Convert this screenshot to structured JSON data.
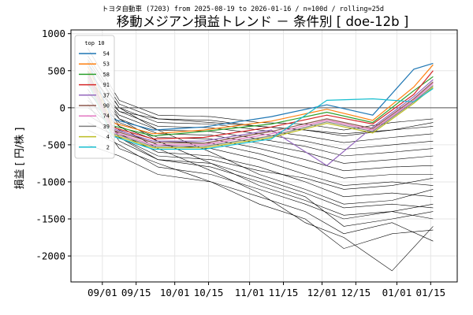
{
  "chart_data": {
    "type": "line",
    "suptitle": "トヨタ自動車 (7203) from 2025-08-19 to 2026-01-16 / n=100d / rolling=25d",
    "title": "移動メジアン損益トレンド － 条件別 [ doe-12b ]",
    "ylabel": "損益 [ 円/株 ]",
    "xlabel": "",
    "x_tick_labels": [
      "09/01",
      "09/15",
      "10/01",
      "10/15",
      "11/01",
      "11/15",
      "12/01",
      "12/15",
      "01/01",
      "01/15"
    ],
    "x_tick_dates": [
      "2025-09-01",
      "2025-09-15",
      "2025-10-01",
      "2025-10-15",
      "2025-11-01",
      "2025-11-15",
      "2025-12-01",
      "2025-12-15",
      "2026-01-01",
      "2026-01-15"
    ],
    "x_range": [
      "2025-08-19",
      "2026-01-26"
    ],
    "y_ticks": [
      1000,
      500,
      0,
      -500,
      -1000,
      -1500,
      -2000
    ],
    "ylim": [
      -2350,
      1050
    ],
    "grid": true,
    "zero_line": true,
    "legend": {
      "title": "top 10",
      "position": "upper-left"
    },
    "series": [
      {
        "name": "54",
        "color": "#1f77b4",
        "x": [
          "2025-08-26",
          "2025-09-05",
          "2025-09-22",
          "2025-10-13",
          "2025-11-10",
          "2025-12-03",
          "2025-12-22",
          "2026-01-08",
          "2026-01-16"
        ],
        "values": [
          620,
          -150,
          -300,
          -260,
          -120,
          40,
          -100,
          520,
          600
        ]
      },
      {
        "name": "53",
        "color": "#ff7f0e",
        "x": [
          "2025-08-26",
          "2025-09-05",
          "2025-09-22",
          "2025-10-13",
          "2025-11-10",
          "2025-12-03",
          "2025-12-22",
          "2026-01-08",
          "2026-01-16"
        ],
        "values": [
          560,
          -200,
          -350,
          -300,
          -180,
          -20,
          -170,
          280,
          580
        ]
      },
      {
        "name": "58",
        "color": "#2ca02c",
        "x": [
          "2025-08-26",
          "2025-09-05",
          "2025-09-22",
          "2025-10-13",
          "2025-11-10",
          "2025-12-03",
          "2025-12-22",
          "2026-01-08",
          "2026-01-16"
        ],
        "values": [
          500,
          -240,
          -380,
          -320,
          -220,
          -60,
          -200,
          230,
          420
        ]
      },
      {
        "name": "91",
        "color": "#d62728",
        "x": [
          "2025-08-26",
          "2025-09-05",
          "2025-09-22",
          "2025-10-13",
          "2025-11-10",
          "2025-12-03",
          "2025-12-22",
          "2026-01-08",
          "2026-01-16"
        ],
        "values": [
          480,
          -260,
          -420,
          -400,
          -260,
          -100,
          -220,
          180,
          500
        ]
      },
      {
        "name": "37",
        "color": "#9467bd",
        "x": [
          "2025-08-26",
          "2025-09-05",
          "2025-09-22",
          "2025-10-13",
          "2025-11-10",
          "2025-12-03",
          "2025-12-22",
          "2026-01-08",
          "2026-01-16"
        ],
        "values": [
          450,
          -280,
          -450,
          -450,
          -300,
          -780,
          -260,
          150,
          380
        ]
      },
      {
        "name": "90",
        "color": "#8c564b",
        "x": [
          "2025-08-26",
          "2025-09-05",
          "2025-09-22",
          "2025-10-13",
          "2025-11-10",
          "2025-12-03",
          "2025-12-22",
          "2026-01-08",
          "2026-01-16"
        ],
        "values": [
          420,
          -300,
          -470,
          -480,
          -320,
          -150,
          -280,
          120,
          350
        ]
      },
      {
        "name": "74",
        "color": "#e377c2",
        "x": [
          "2025-08-26",
          "2025-09-05",
          "2025-09-22",
          "2025-10-13",
          "2025-11-10",
          "2025-12-03",
          "2025-12-22",
          "2026-01-08",
          "2026-01-16"
        ],
        "values": [
          400,
          -320,
          -500,
          -500,
          -350,
          -170,
          -300,
          100,
          330
        ]
      },
      {
        "name": "39",
        "color": "#7f7f7f",
        "x": [
          "2025-08-26",
          "2025-09-05",
          "2025-09-22",
          "2025-10-13",
          "2025-11-10",
          "2025-12-03",
          "2025-12-22",
          "2026-01-08",
          "2026-01-16"
        ],
        "values": [
          380,
          -340,
          -520,
          -520,
          -380,
          -190,
          -320,
          80,
          300
        ]
      },
      {
        "name": "4",
        "color": "#bcbd22",
        "x": [
          "2025-08-26",
          "2025-09-05",
          "2025-09-22",
          "2025-10-13",
          "2025-11-10",
          "2025-12-03",
          "2025-12-22",
          "2026-01-08",
          "2026-01-16"
        ],
        "values": [
          360,
          -360,
          -540,
          -540,
          -400,
          -210,
          -340,
          60,
          280
        ]
      },
      {
        "name": "2",
        "color": "#17becf",
        "x": [
          "2025-08-26",
          "2025-09-05",
          "2025-09-22",
          "2025-10-13",
          "2025-11-10",
          "2025-12-03",
          "2025-12-22",
          "2026-01-08",
          "2026-01-16"
        ],
        "values": [
          340,
          -380,
          -560,
          -560,
          -420,
          100,
          120,
          80,
          260
        ]
      }
    ],
    "background_series_note": "",
    "background_series": [
      {
        "x": [
          "2025-08-26",
          "2025-09-08",
          "2025-09-24",
          "2025-10-16",
          "2025-11-05",
          "2025-11-24",
          "2025-12-10",
          "2025-12-30",
          "2026-01-16"
        ],
        "values": [
          -500,
          -650,
          -900,
          -1000,
          -1200,
          -1400,
          -1700,
          -1550,
          -1800
        ]
      },
      {
        "x": [
          "2025-08-26",
          "2025-09-08",
          "2025-09-24",
          "2025-10-16",
          "2025-11-05",
          "2025-11-24",
          "2025-12-10",
          "2025-12-30",
          "2026-01-16"
        ],
        "values": [
          -300,
          -500,
          -800,
          -900,
          -1100,
          -1300,
          -1500,
          -1400,
          -1500
        ]
      },
      {
        "x": [
          "2025-08-26",
          "2025-09-08",
          "2025-09-24",
          "2025-10-16",
          "2025-11-05",
          "2025-11-24",
          "2025-12-10",
          "2025-12-30",
          "2026-01-16"
        ],
        "values": [
          -200,
          -400,
          -700,
          -750,
          -950,
          -1150,
          -1350,
          -1300,
          -1350
        ]
      },
      {
        "x": [
          "2025-08-26",
          "2025-09-08",
          "2025-09-24",
          "2025-10-16",
          "2025-11-05",
          "2025-11-24",
          "2025-12-10",
          "2025-12-30",
          "2026-01-16"
        ],
        "values": [
          -100,
          -350,
          -600,
          -650,
          -800,
          -1000,
          -1200,
          -1150,
          -1200
        ]
      },
      {
        "x": [
          "2025-08-26",
          "2025-09-08",
          "2025-09-24",
          "2025-10-16",
          "2025-11-05",
          "2025-11-24",
          "2025-12-10",
          "2025-12-30",
          "2026-01-16"
        ],
        "values": [
          0,
          -300,
          -500,
          -550,
          -700,
          -900,
          -1050,
          -1000,
          -1050
        ]
      },
      {
        "x": [
          "2025-08-26",
          "2025-09-08",
          "2025-09-24",
          "2025-10-16",
          "2025-11-05",
          "2025-11-24",
          "2025-12-10",
          "2025-12-30",
          "2026-01-16"
        ],
        "values": [
          100,
          -250,
          -450,
          -480,
          -620,
          -800,
          -950,
          -900,
          -900
        ]
      },
      {
        "x": [
          "2025-08-26",
          "2025-09-08",
          "2025-09-24",
          "2025-10-16",
          "2025-11-05",
          "2025-11-24",
          "2025-12-10",
          "2025-12-30",
          "2026-01-16"
        ],
        "values": [
          200,
          -200,
          -400,
          -420,
          -550,
          -700,
          -850,
          -800,
          -780
        ]
      },
      {
        "x": [
          "2025-08-26",
          "2025-09-08",
          "2025-09-24",
          "2025-10-16",
          "2025-11-05",
          "2025-11-24",
          "2025-12-10",
          "2025-12-30",
          "2026-01-16"
        ],
        "values": [
          300,
          -150,
          -350,
          -370,
          -480,
          -600,
          -750,
          -700,
          -650
        ]
      },
      {
        "x": [
          "2025-08-26",
          "2025-09-08",
          "2025-09-24",
          "2025-10-16",
          "2025-11-05",
          "2025-11-24",
          "2025-12-10",
          "2025-12-30",
          "2026-01-16"
        ],
        "values": [
          400,
          -100,
          -300,
          -320,
          -420,
          -520,
          -650,
          -600,
          -550
        ]
      },
      {
        "x": [
          "2025-08-26",
          "2025-09-08",
          "2025-09-24",
          "2025-10-16",
          "2025-11-05",
          "2025-11-24",
          "2025-12-10",
          "2025-12-30",
          "2026-01-16"
        ],
        "values": [
          500,
          -50,
          -250,
          -270,
          -350,
          -450,
          -560,
          -500,
          -450
        ]
      },
      {
        "x": [
          "2025-08-26",
          "2025-09-08",
          "2025-09-24",
          "2025-10-16",
          "2025-11-05",
          "2025-11-24",
          "2025-12-10",
          "2025-12-30",
          "2026-01-16"
        ],
        "values": [
          600,
          0,
          -200,
          -220,
          -300,
          -380,
          -470,
          -400,
          -350
        ]
      },
      {
        "x": [
          "2025-08-26",
          "2025-09-08",
          "2025-09-24",
          "2025-10-16",
          "2025-11-05",
          "2025-11-24",
          "2025-12-10",
          "2025-12-30",
          "2026-01-16"
        ],
        "values": [
          700,
          50,
          -150,
          -170,
          -250,
          -300,
          -380,
          -300,
          -250
        ]
      },
      {
        "x": [
          "2025-08-26",
          "2025-09-08",
          "2025-09-24",
          "2025-10-16",
          "2025-11-05",
          "2025-11-24",
          "2025-12-10",
          "2025-12-30",
          "2026-01-16"
        ],
        "values": [
          800,
          100,
          -100,
          -120,
          -200,
          -220,
          -300,
          -200,
          -150
        ]
      },
      {
        "x": [
          "2025-08-26",
          "2025-09-08",
          "2025-09-24",
          "2025-10-16",
          "2025-11-05",
          "2025-11-24",
          "2025-12-10",
          "2025-12-30",
          "2026-01-16"
        ],
        "values": [
          650,
          0,
          -300,
          -600,
          -900,
          -1100,
          -1300,
          -1250,
          -1100
        ]
      },
      {
        "x": [
          "2025-08-26",
          "2025-09-08",
          "2025-09-24",
          "2025-10-16",
          "2025-11-05",
          "2025-11-24",
          "2025-12-10",
          "2025-12-30",
          "2026-01-16"
        ],
        "values": [
          550,
          -150,
          -450,
          -750,
          -1050,
          -1250,
          -1450,
          -1400,
          -1300
        ]
      },
      {
        "x": [
          "2025-08-26",
          "2025-09-08",
          "2025-09-24",
          "2025-10-16",
          "2025-11-05",
          "2025-11-24",
          "2025-12-10",
          "2025-12-30",
          "2026-01-16"
        ],
        "values": [
          450,
          -250,
          -550,
          -850,
          -1150,
          -1550,
          -1750,
          -2200,
          -1600
        ]
      },
      {
        "x": [
          "2025-08-26",
          "2025-09-08",
          "2025-09-24",
          "2025-10-16",
          "2025-11-05",
          "2025-11-24",
          "2025-12-10",
          "2025-12-30",
          "2026-01-16"
        ],
        "values": [
          350,
          -50,
          -150,
          -200,
          -250,
          -300,
          -350,
          -300,
          -200
        ]
      },
      {
        "x": [
          "2025-08-26",
          "2025-09-08",
          "2025-09-24",
          "2025-10-16",
          "2025-11-05",
          "2025-11-24",
          "2025-12-10",
          "2025-12-30",
          "2026-01-16"
        ],
        "values": [
          250,
          -400,
          -650,
          -700,
          -850,
          -950,
          -1100,
          -1050,
          -950
        ]
      },
      {
        "x": [
          "2025-08-26",
          "2025-09-08",
          "2025-09-24",
          "2025-10-16",
          "2025-11-05",
          "2025-11-24",
          "2025-12-10",
          "2025-12-30",
          "2026-01-16"
        ],
        "values": [
          150,
          -450,
          -700,
          -800,
          -1000,
          -1200,
          -1600,
          -1500,
          -1400
        ]
      },
      {
        "x": [
          "2025-08-26",
          "2025-09-08",
          "2025-09-24",
          "2025-10-16",
          "2025-11-05",
          "2025-11-24",
          "2025-12-10",
          "2025-12-30",
          "2026-01-16"
        ],
        "values": [
          50,
          -550,
          -750,
          -1000,
          -1300,
          -1500,
          -1900,
          -1700,
          -1650
        ]
      }
    ]
  }
}
